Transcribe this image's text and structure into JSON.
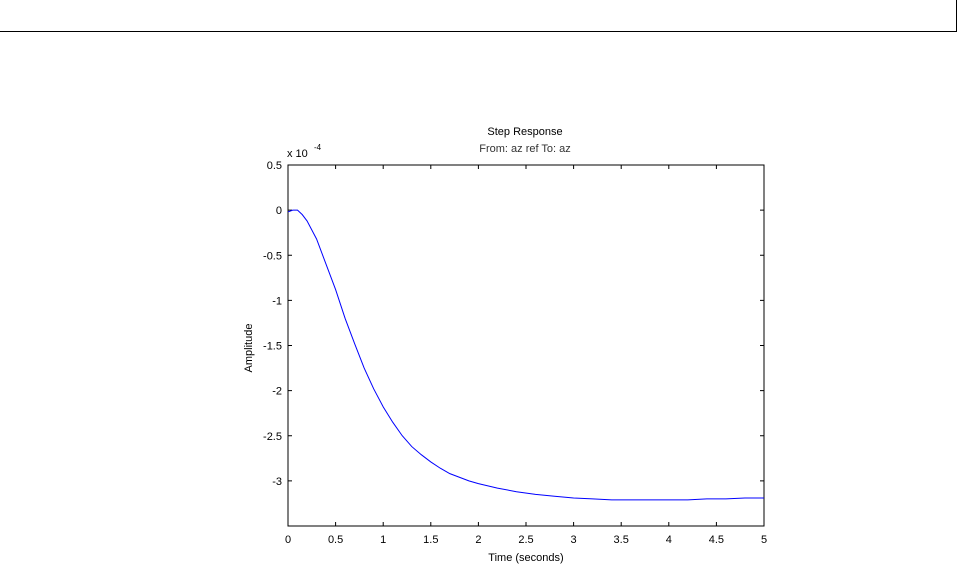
{
  "chart_data": {
    "type": "line",
    "title": "Step Response",
    "subtitle": "From: az ref  To: az",
    "xlabel": "Time (seconds)",
    "ylabel": "Amplitude",
    "multiplier_base": "x 10",
    "multiplier_exponent": "-4",
    "xlim": [
      0,
      5
    ],
    "ylim": [
      -3.5,
      0.5
    ],
    "x_ticks": [
      0,
      0.5,
      1,
      1.5,
      2,
      2.5,
      3,
      3.5,
      4,
      4.5,
      5
    ],
    "x_tick_labels": [
      "0",
      "0.5",
      "1",
      "1.5",
      "2",
      "2.5",
      "3",
      "3.5",
      "4",
      "4.5",
      "5"
    ],
    "y_ticks": [
      0.5,
      0,
      -0.5,
      -1,
      -1.5,
      -2,
      -2.5,
      -3
    ],
    "y_tick_labels": [
      "0.5",
      "0",
      "-0.5",
      "-1",
      "-1.5",
      "-2",
      "-2.5",
      "-3"
    ],
    "grid": false,
    "line_color": "#0000ff",
    "series": [
      {
        "x": [
          0,
          0.05,
          0.1,
          0.15,
          0.2,
          0.3,
          0.4,
          0.5,
          0.6,
          0.7,
          0.8,
          0.9,
          1.0,
          1.1,
          1.2,
          1.3,
          1.4,
          1.5,
          1.6,
          1.7,
          1.8,
          1.9,
          2.0,
          2.2,
          2.4,
          2.6,
          2.8,
          3.0,
          3.2,
          3.4,
          3.6,
          3.8,
          4.0,
          4.2,
          4.4,
          4.6,
          4.8,
          5.0
        ],
        "y": [
          -0.02,
          0.0,
          0.0,
          -0.05,
          -0.12,
          -0.32,
          -0.6,
          -0.88,
          -1.2,
          -1.48,
          -1.75,
          -1.98,
          -2.18,
          -2.35,
          -2.5,
          -2.62,
          -2.71,
          -2.79,
          -2.86,
          -2.92,
          -2.96,
          -3.0,
          -3.03,
          -3.08,
          -3.12,
          -3.15,
          -3.17,
          -3.19,
          -3.2,
          -3.21,
          -3.21,
          -3.21,
          -3.21,
          -3.21,
          -3.2,
          -3.2,
          -3.19,
          -3.19
        ]
      }
    ]
  }
}
